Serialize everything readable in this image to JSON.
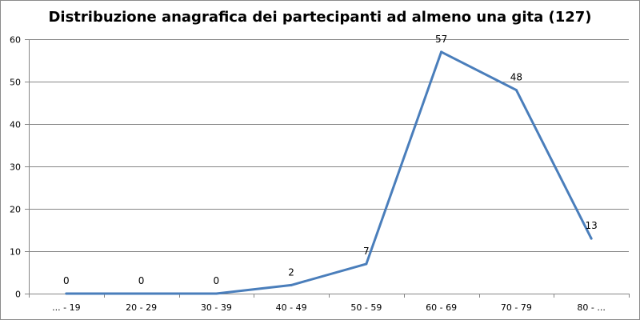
{
  "chart_data": {
    "type": "line",
    "title": "Distribuzione anagrafica dei partecipanti ad almeno una gita (127)",
    "xlabel": "",
    "ylabel": "",
    "categories": [
      "... - 19",
      "20 - 29",
      "30 - 39",
      "40 - 49",
      "50 - 59",
      "60 - 69",
      "70 - 79",
      "80 - ..."
    ],
    "series": [
      {
        "values": [
          0,
          0,
          0,
          2,
          7,
          57,
          48,
          13
        ]
      }
    ],
    "data_labels": [
      "0",
      "0",
      "0",
      "2",
      "7",
      "57",
      "48",
      "13"
    ],
    "ylim": [
      0,
      60
    ],
    "yticks": [
      0,
      10,
      20,
      30,
      40,
      50,
      60
    ],
    "grid": true,
    "legend": "none",
    "colors": {
      "line": "#4a7ebb",
      "grid": "#868686",
      "axis": "#868686"
    }
  }
}
